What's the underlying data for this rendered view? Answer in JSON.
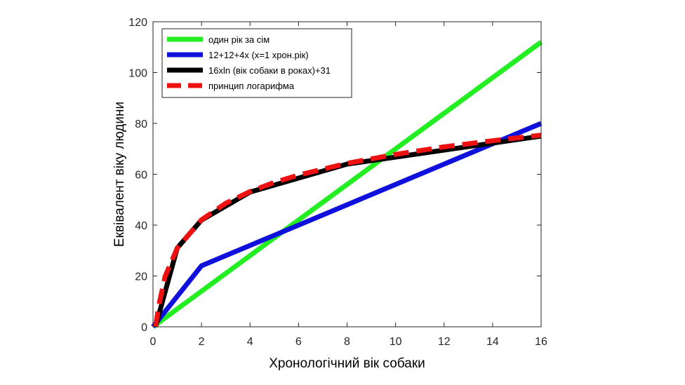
{
  "chart_data": {
    "type": "line",
    "title": "",
    "xlabel": "Хронологічний вік собаки",
    "ylabel": "Еквівалент віку людини",
    "xlim": [
      0,
      16
    ],
    "ylim": [
      0,
      120
    ],
    "xticks": [
      "0",
      "2",
      "4",
      "6",
      "8",
      "10",
      "12",
      "14",
      "16"
    ],
    "yticks": [
      "0",
      "20",
      "40",
      "60",
      "80",
      "100",
      "120"
    ],
    "legend_position": "top-left",
    "grid": false,
    "series": [
      {
        "name": "один рік за сім",
        "color": "#22ee22",
        "style": "solid",
        "x": [
          0,
          16
        ],
        "y": [
          0,
          112
        ]
      },
      {
        "name": "12+12+4x (x=1 хрон.рік)",
        "color": "#1010dd",
        "style": "solid",
        "x": [
          0,
          2,
          16
        ],
        "y": [
          0,
          24,
          80
        ]
      },
      {
        "name": "16xln (вік собаки в роках)+31",
        "color": "#000000",
        "style": "solid",
        "x": [
          0.1,
          1,
          2,
          4,
          8,
          16
        ],
        "y": [
          0,
          31,
          42,
          53,
          64,
          75
        ]
      },
      {
        "name": "принцип логарифма",
        "color": "#ee1111",
        "style": "dashed",
        "x": [
          0.1,
          0.25,
          0.5,
          1,
          2,
          3,
          4,
          5,
          6,
          8,
          10,
          12,
          14,
          16
        ],
        "y": [
          0,
          8.8,
          19.9,
          31,
          42.1,
          48.6,
          53.2,
          56.8,
          59.7,
          64.3,
          67.8,
          70.8,
          73.2,
          75.4
        ]
      }
    ]
  }
}
